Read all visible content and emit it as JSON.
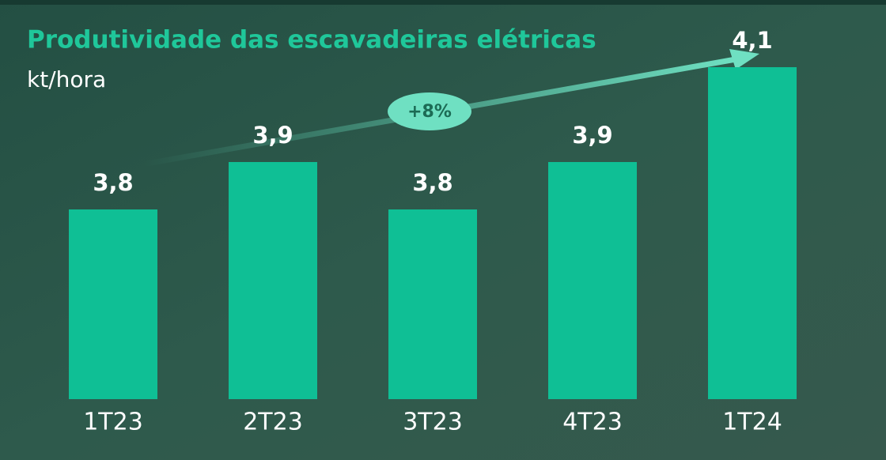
{
  "chart_data": {
    "type": "bar",
    "title": "Produtividade das escavadeiras elétricas",
    "subtitle": "kt/hora",
    "annotation": "+8%",
    "categories": [
      "1T23",
      "2T23",
      "3T23",
      "4T23",
      "1T24"
    ],
    "values": [
      3.8,
      3.9,
      3.8,
      3.9,
      4.1
    ],
    "value_labels": [
      "3,8",
      "3,9",
      "3,8",
      "3,9",
      "4,1"
    ],
    "color": "#0fbf95",
    "ylim": [
      3.4,
      4.2
    ]
  }
}
